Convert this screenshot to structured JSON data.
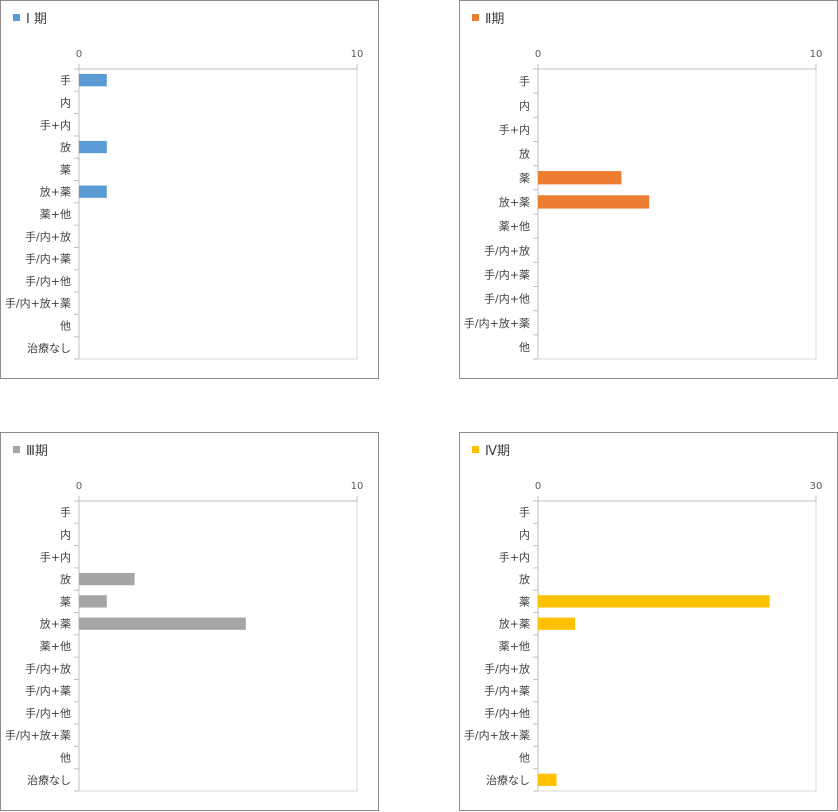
{
  "chart_data": [
    {
      "type": "bar",
      "orientation": "horizontal",
      "legend": "I 期",
      "color": "#5b9bd5",
      "xlim": [
        0,
        10
      ],
      "ticks": [
        "0",
        "10"
      ],
      "categories": [
        "手",
        "内",
        "手+内",
        "放",
        "薬",
        "放+薬",
        "薬+他",
        "手/内+放",
        "手/内+薬",
        "手/内+他",
        "手/内+放+薬",
        "他",
        "治療なし"
      ],
      "values": [
        1,
        0,
        0,
        1,
        0,
        1,
        0,
        0,
        0,
        0,
        0,
        0,
        0
      ]
    },
    {
      "type": "bar",
      "orientation": "horizontal",
      "legend": "Ⅱ期",
      "color": "#ed7d31",
      "xlim": [
        0,
        10
      ],
      "ticks": [
        "0",
        "10"
      ],
      "categories": [
        "手",
        "内",
        "手+内",
        "放",
        "薬",
        "放+薬",
        "薬+他",
        "手/内+放",
        "手/内+薬",
        "手/内+他",
        "手/内+放+薬",
        "他"
      ],
      "values": [
        0,
        0,
        0,
        0,
        3,
        4,
        0,
        0,
        0,
        0,
        0,
        0
      ]
    },
    {
      "type": "bar",
      "orientation": "horizontal",
      "legend": "Ⅲ期",
      "color": "#a5a5a5",
      "xlim": [
        0,
        10
      ],
      "ticks": [
        "0",
        "10"
      ],
      "categories": [
        "手",
        "内",
        "手+内",
        "放",
        "薬",
        "放+薬",
        "薬+他",
        "手/内+放",
        "手/内+薬",
        "手/内+他",
        "手/内+放+薬",
        "他",
        "治療なし"
      ],
      "values": [
        0,
        0,
        0,
        2,
        1,
        6,
        0,
        0,
        0,
        0,
        0,
        0,
        0
      ]
    },
    {
      "type": "bar",
      "orientation": "horizontal",
      "legend": "Ⅳ期",
      "color": "#ffc000",
      "xlim": [
        0,
        30
      ],
      "ticks": [
        "0",
        "30"
      ],
      "categories": [
        "手",
        "内",
        "手+内",
        "放",
        "薬",
        "放+薬",
        "薬+他",
        "手/内+放",
        "手/内+薬",
        "手/内+他",
        "手/内+放+薬",
        "他",
        "治療なし"
      ],
      "values": [
        0,
        0,
        0,
        0,
        25,
        4,
        0,
        0,
        0,
        0,
        0,
        0,
        2
      ]
    }
  ]
}
